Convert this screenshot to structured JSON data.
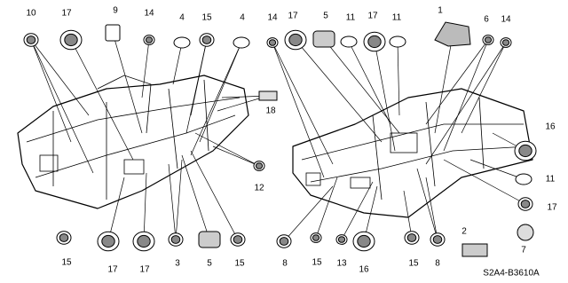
{
  "callouts": [
    {
      "label": "10"
    },
    {
      "label": "17"
    },
    {
      "label": "9"
    },
    {
      "label": "14"
    },
    {
      "label": "4"
    },
    {
      "label": "15"
    },
    {
      "label": "4"
    },
    {
      "label": "14"
    },
    {
      "label": "17"
    },
    {
      "label": "5"
    },
    {
      "label": "11"
    },
    {
      "label": "17"
    },
    {
      "label": "11"
    },
    {
      "label": "1"
    },
    {
      "label": "6"
    },
    {
      "label": "14"
    },
    {
      "label": "18"
    },
    {
      "label": "12"
    },
    {
      "label": "16"
    },
    {
      "label": "11"
    },
    {
      "label": "17"
    },
    {
      "label": "7"
    },
    {
      "label": "2"
    },
    {
      "label": "15"
    },
    {
      "label": "17"
    },
    {
      "label": "17"
    },
    {
      "label": "3"
    },
    {
      "label": "5"
    },
    {
      "label": "15"
    },
    {
      "label": "8"
    },
    {
      "label": "15"
    },
    {
      "label": "13"
    },
    {
      "label": "16"
    },
    {
      "label": "15"
    },
    {
      "label": "8"
    }
  ],
  "diagram_code": "S2A4-B3610A"
}
